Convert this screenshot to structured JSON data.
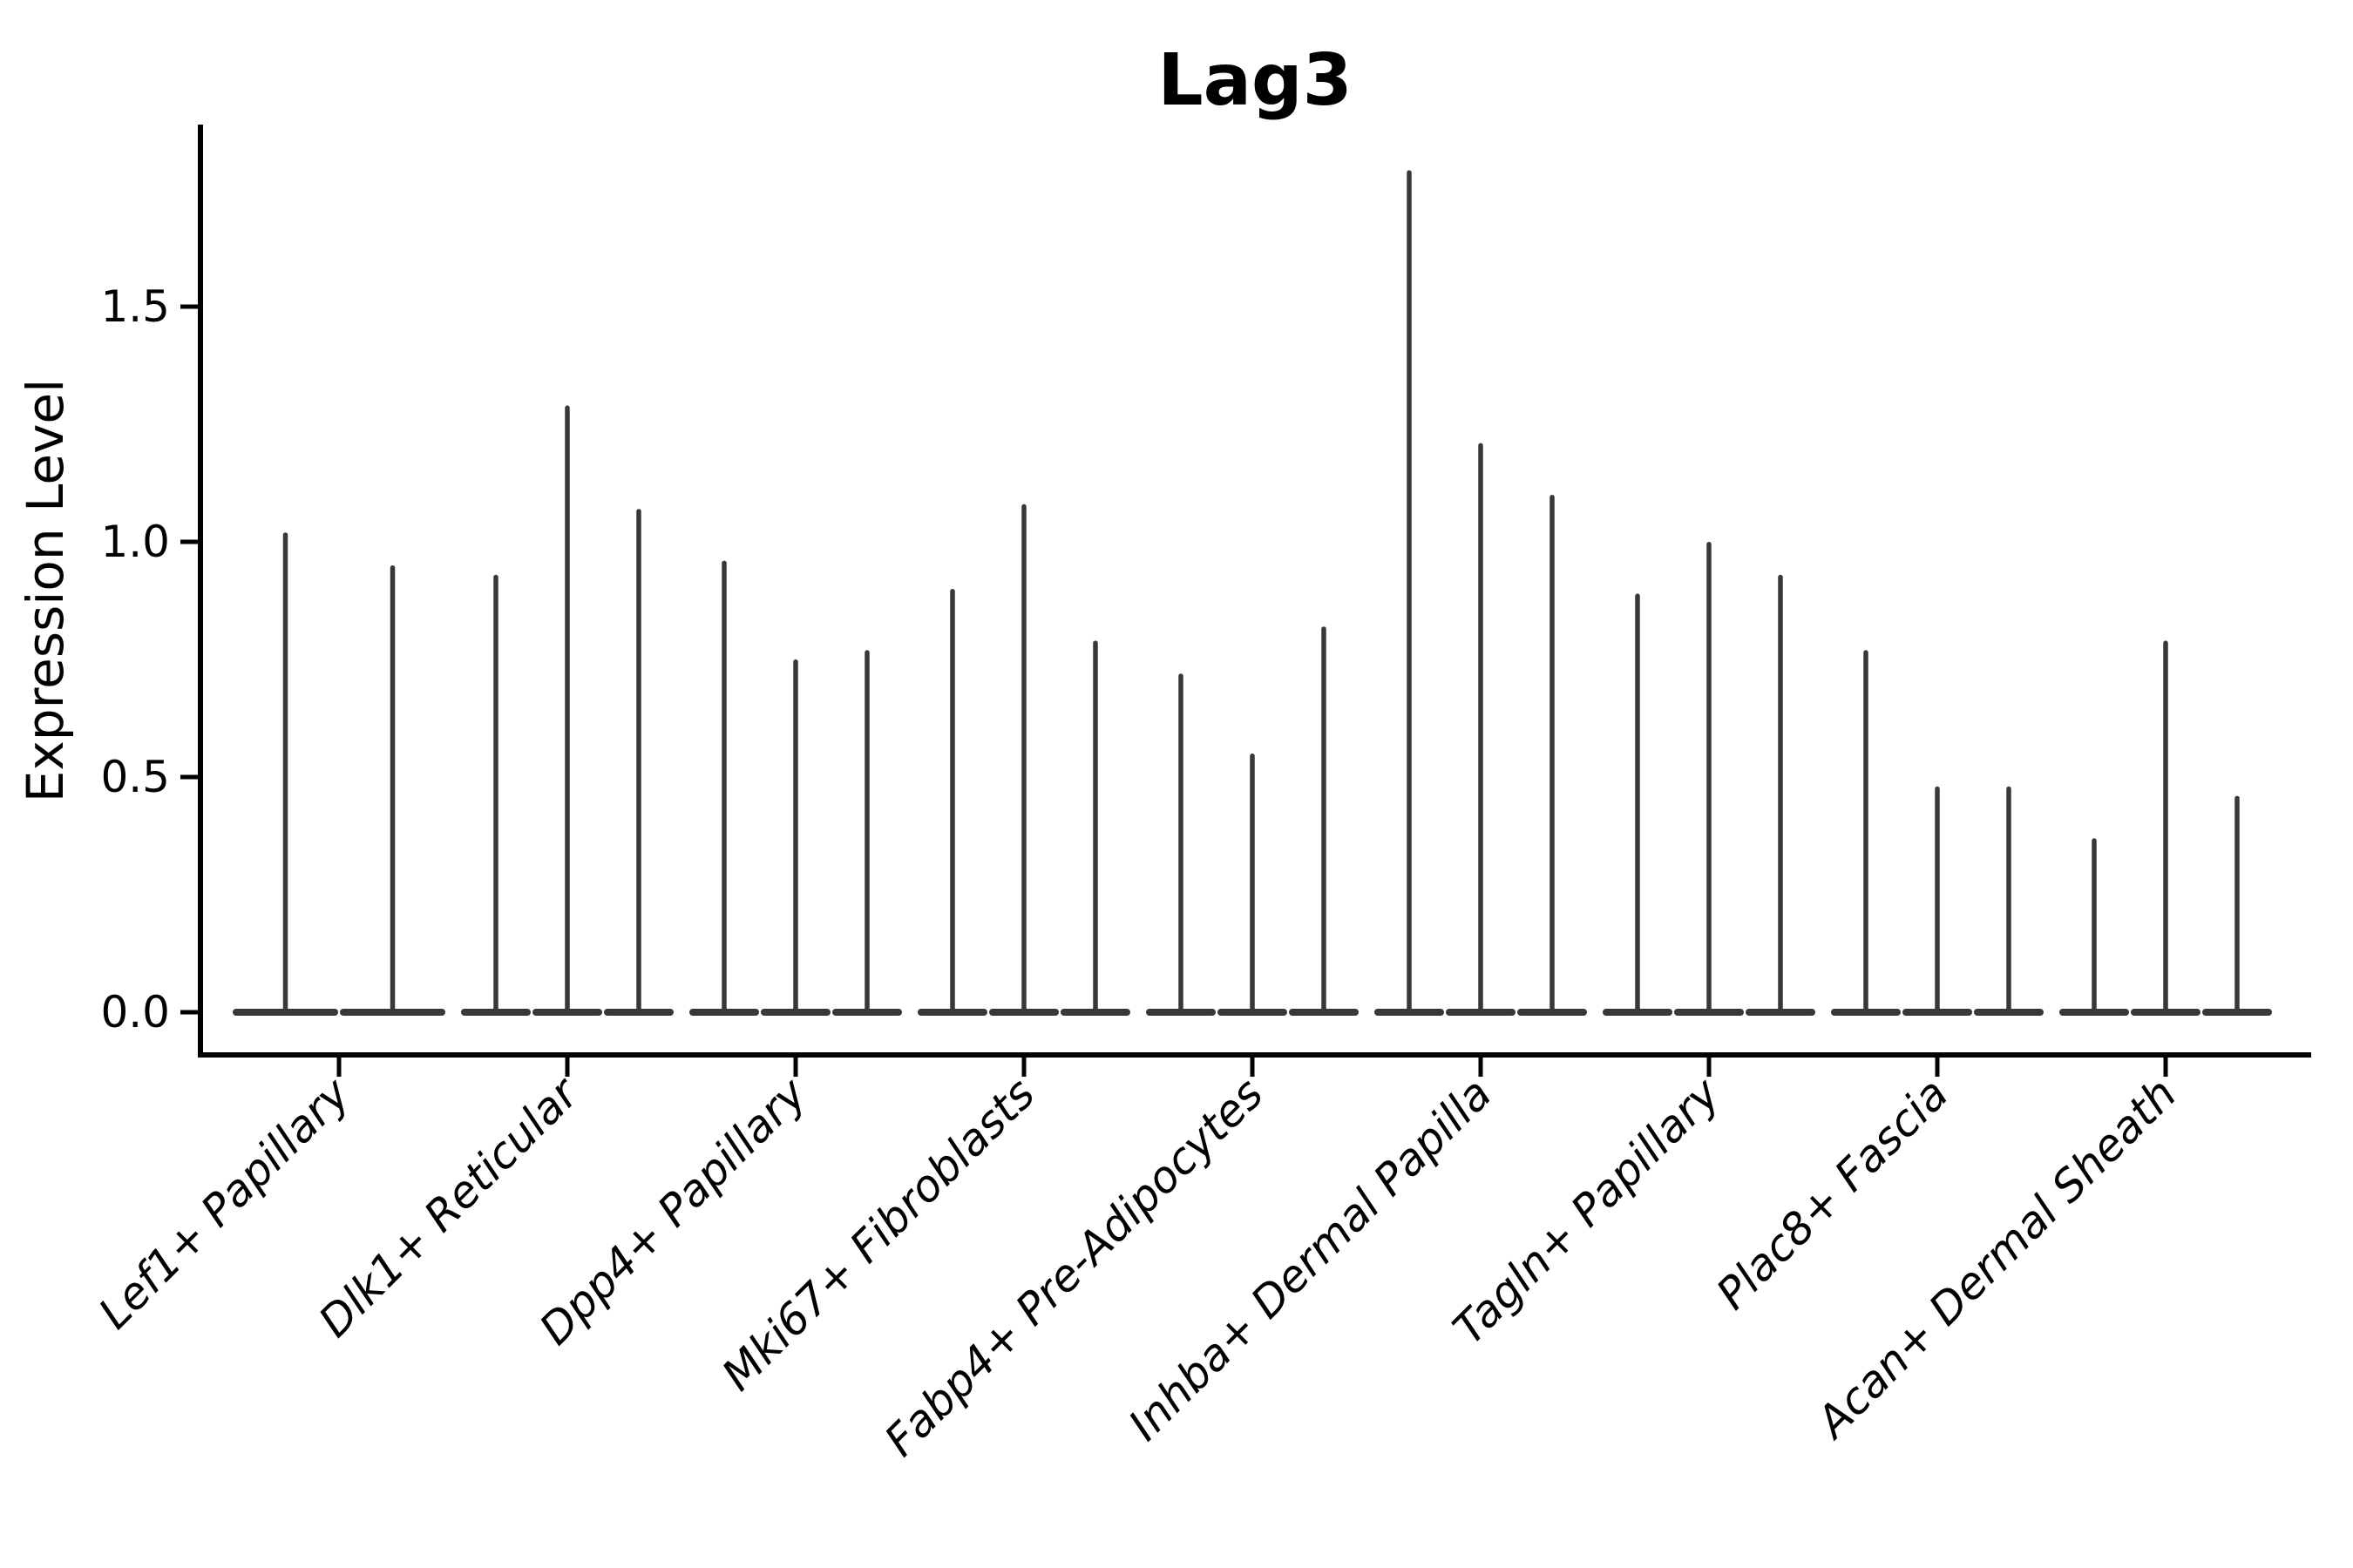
{
  "figure": {
    "title": "Lag3",
    "background_color": "#ffffff",
    "violin_color": "#383838",
    "axis_color": "#000000"
  },
  "chart_data": {
    "type": "violin",
    "title": "Lag3",
    "xlabel": "",
    "ylabel": "Expression Level",
    "yticks": [
      "0.0",
      "0.5",
      "1.0",
      "1.5"
    ],
    "ytick_values": [
      0.0,
      0.5,
      1.0,
      1.5
    ],
    "ylim": [
      -0.09,
      1.89
    ],
    "grid": false,
    "legend_position": "none",
    "x_tick_rotation": 45,
    "categories": [
      "Lef1+ Papillary",
      "Dlk1+ Reticular",
      "Dpp4+ Papillary",
      "Mki67+ Fibroblasts",
      "Fabp4+ Pre-Adipocytes",
      "Inhba+ Dermal Papilla",
      "Tagln+ Papillary",
      "Plac8+ Fascia",
      "Acan+ Dermal Sheath"
    ],
    "series": [
      {
        "category": "Lef1+ Papillary",
        "violin_maxima": [
          1.02,
          0.95
        ]
      },
      {
        "category": "Dlk1+ Reticular",
        "violin_maxima": [
          0.93,
          1.29,
          1.07
        ]
      },
      {
        "category": "Dpp4+ Papillary",
        "violin_maxima": [
          0.96,
          0.75,
          0.77
        ]
      },
      {
        "category": "Mki67+ Fibroblasts",
        "violin_maxima": [
          0.9,
          1.08,
          0.79
        ]
      },
      {
        "category": "Fabp4+ Pre-Adipocytes",
        "violin_maxima": [
          0.72,
          0.55,
          0.82
        ]
      },
      {
        "category": "Inhba+ Dermal Papilla",
        "violin_maxima": [
          1.79,
          1.21,
          1.1
        ]
      },
      {
        "category": "Tagln+ Papillary",
        "violin_maxima": [
          0.89,
          1.0,
          0.93
        ]
      },
      {
        "category": "Plac8+ Fascia",
        "violin_maxima": [
          0.77,
          0.48,
          0.48
        ]
      },
      {
        "category": "Acan+ Dermal Sheath",
        "violin_maxima": [
          0.37,
          0.79,
          0.46
        ]
      }
    ],
    "violin_baseline_value": 0.0
  }
}
